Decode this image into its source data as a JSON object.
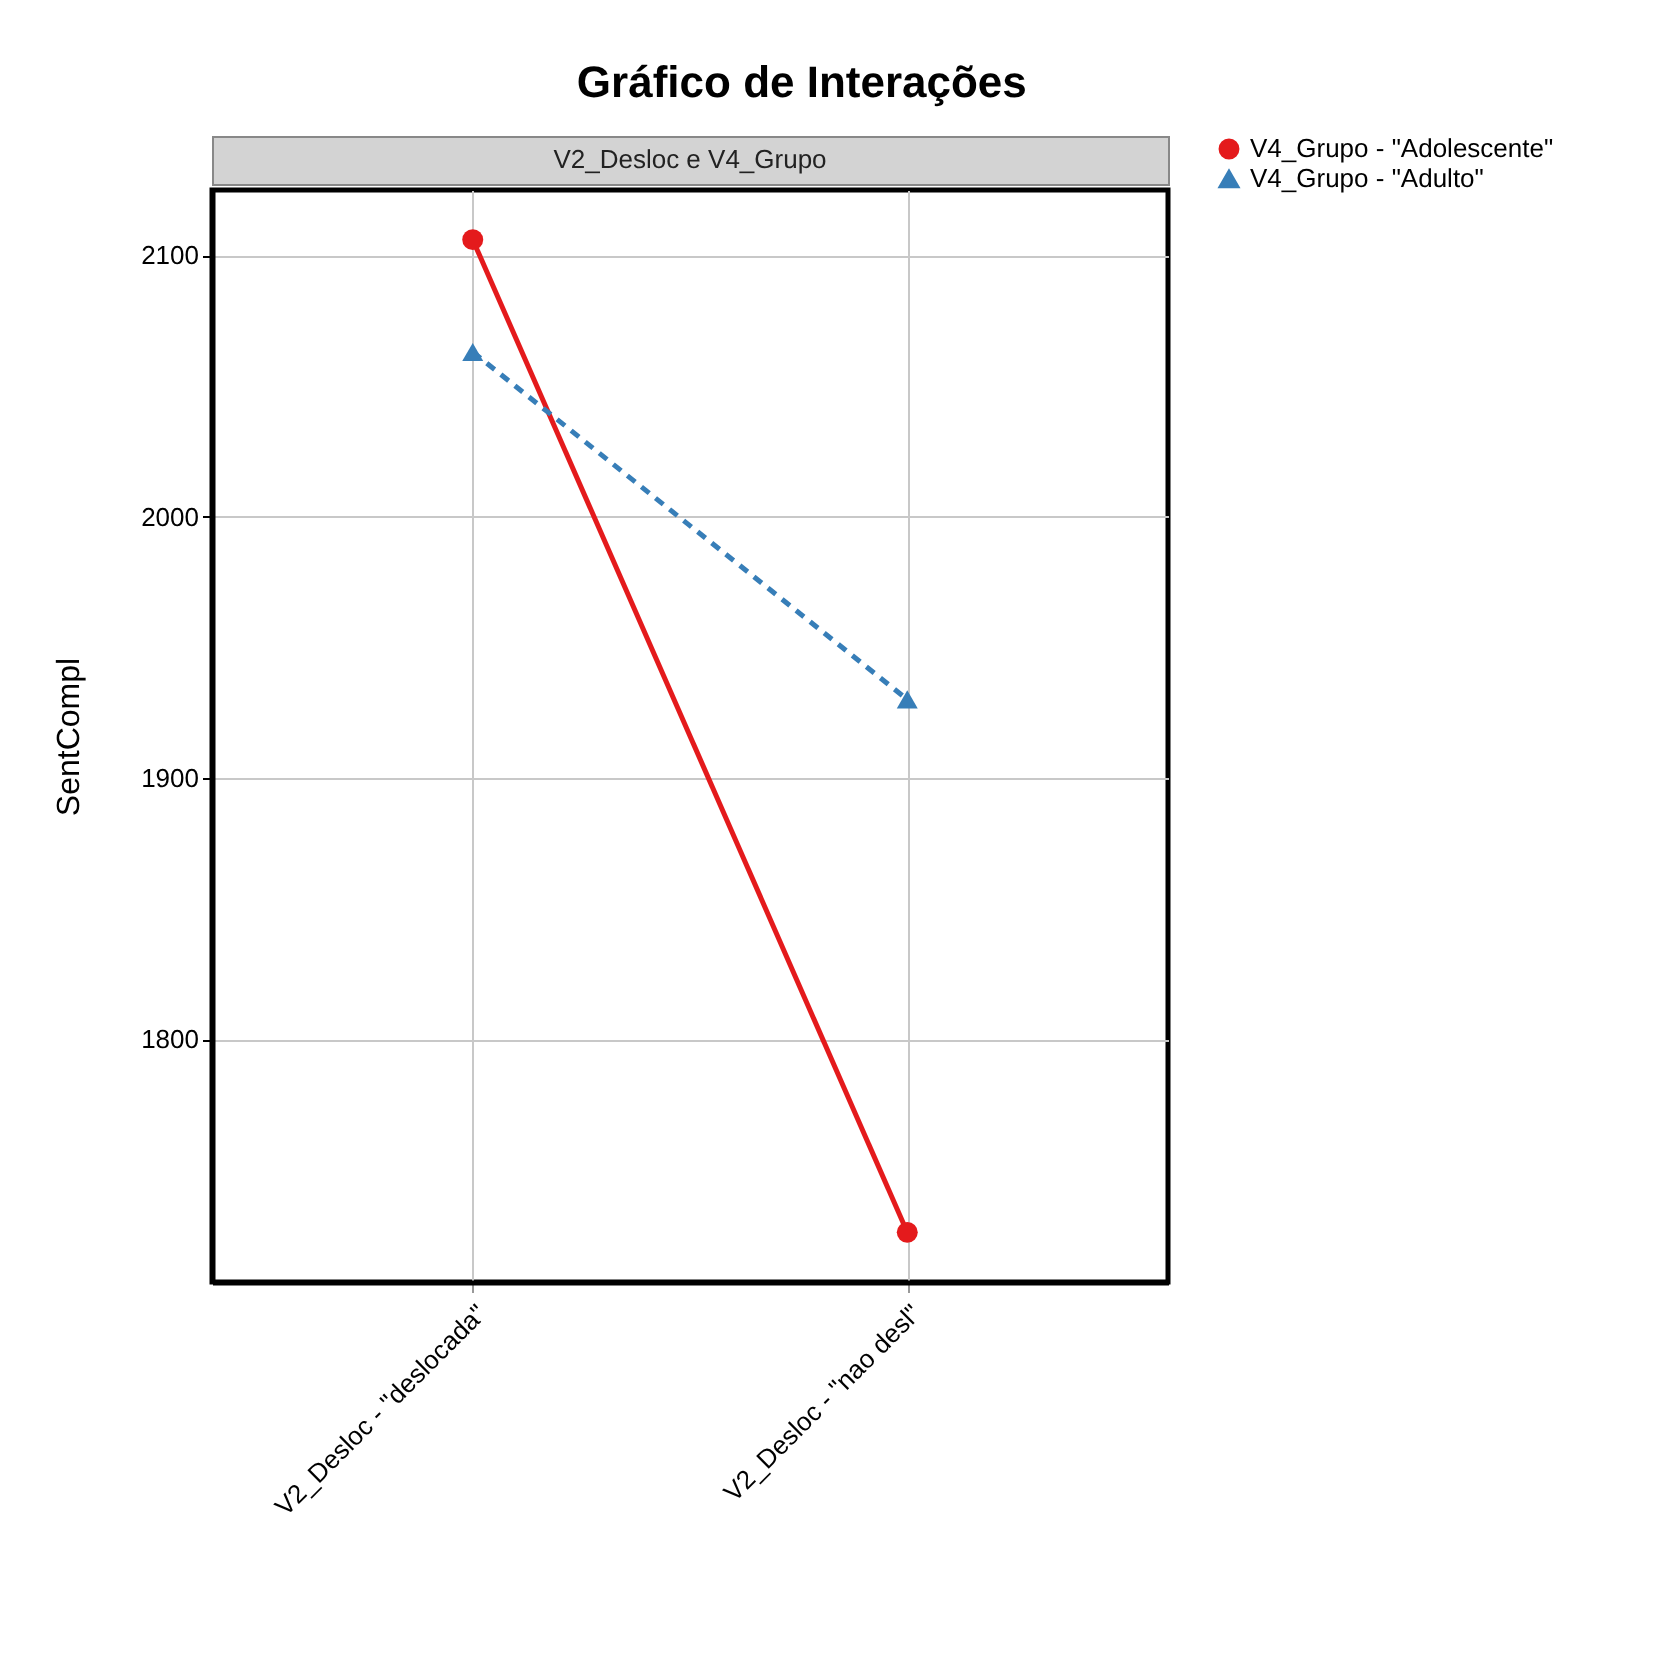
{
  "chart_data": {
    "type": "line",
    "title": "Gráfico de Interações",
    "subtitle": "V2_Desloc e V4_Grupo",
    "ylabel": "SentCompl",
    "categories": [
      "V2_Desloc - \"deslocada\"",
      "V2_Desloc - \"nao desl\""
    ],
    "series": [
      {
        "name": "V4_Grupo - \"Adolescente\"",
        "color": "#e41a1c",
        "values": [
          2106,
          1726
        ],
        "marker": "circle",
        "line_style": "solid"
      },
      {
        "name": "V4_Grupo - \"Adulto\"",
        "color": "#377eb8",
        "values": [
          2063,
          1930
        ],
        "marker": "triangle",
        "line_style": "dashed"
      }
    ],
    "ylim": [
      1707,
      2125
    ],
    "yticks": [
      1800,
      1900,
      2000,
      2100
    ],
    "grid": true,
    "legend": "right"
  }
}
